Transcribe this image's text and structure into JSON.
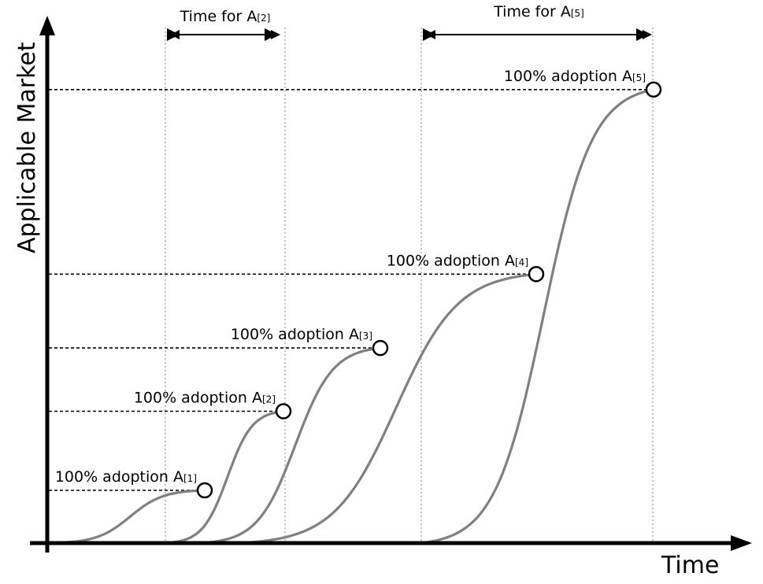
{
  "axes": {
    "y_label": "Applicable Market",
    "x_label": "Time"
  },
  "spans": [
    {
      "label": "Time for A",
      "sub": "[2]",
      "from_step": 2,
      "to_step": 3
    },
    {
      "label": "Time for A",
      "sub": "[5]",
      "from_step": 4,
      "to_step": 5
    }
  ],
  "adoptions": [
    {
      "label": "100% adoption A",
      "sub": "[1]",
      "level": 0.1
    },
    {
      "label": "100% adoption A",
      "sub": "[2]",
      "level": 0.25
    },
    {
      "label": "100% adoption A",
      "sub": "[3]",
      "level": 0.37
    },
    {
      "label": "100% adoption A",
      "sub": "[4]",
      "level": 0.51
    },
    {
      "label": "100% adoption A",
      "sub": "[5]",
      "level": 0.86
    }
  ],
  "colors": {
    "curve": "#808080",
    "axis": "#000000",
    "guide": "#999999"
  }
}
